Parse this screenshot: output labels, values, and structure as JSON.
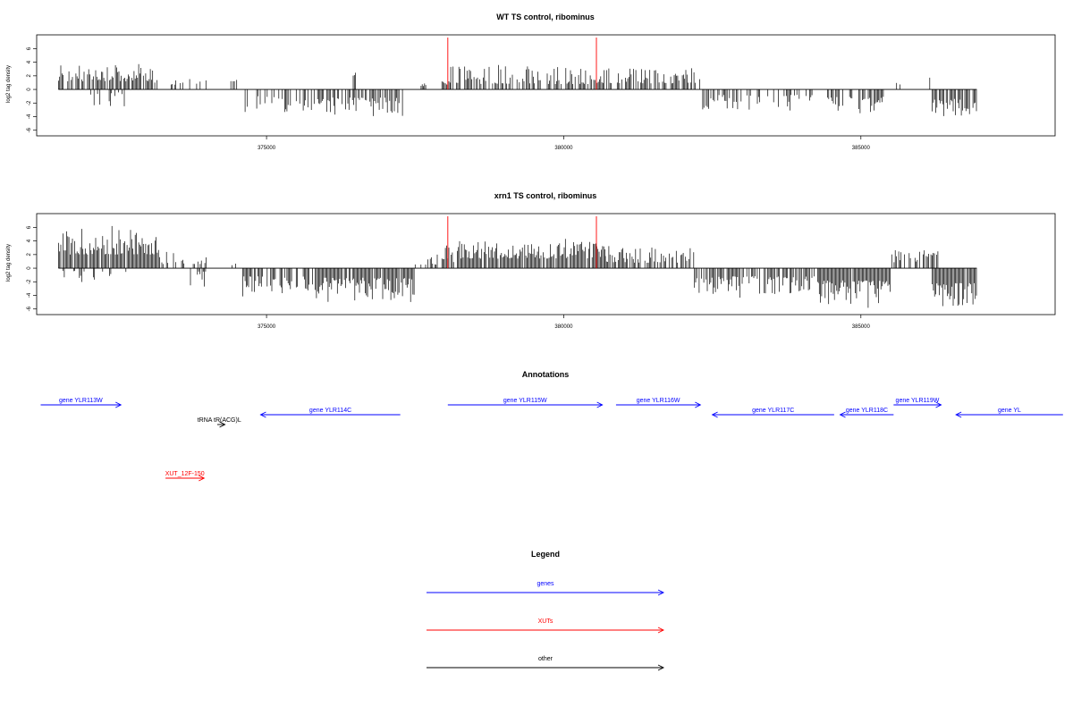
{
  "colors": {
    "gene": "#0000ff",
    "xut": "#ff0000",
    "other": "#000000",
    "marker": "#ff0000"
  },
  "chart_data": [
    {
      "type": "bar",
      "title": "WT TS control, ribominus",
      "ylabel": "log2 tag density",
      "xlim": [
        371200,
        388200
      ],
      "ylim": [
        -6.3,
        7.5
      ],
      "xticks": [
        375000,
        380000,
        385000
      ],
      "yticks": [
        -6,
        -4,
        -2,
        0,
        2,
        4,
        6
      ],
      "markers": [
        378050,
        380550
      ],
      "regions": [
        {
          "start": 371500,
          "end": 373100,
          "sign": 1,
          "base": 1.2,
          "amp": 2.6,
          "density": 0.8
        },
        {
          "start": 372000,
          "end": 372700,
          "sign": -1,
          "base": 0.3,
          "amp": 2.2,
          "density": 0.15
        },
        {
          "start": 373100,
          "end": 374000,
          "sign": 1,
          "base": 0.7,
          "amp": 1.4,
          "density": 0.35
        },
        {
          "start": 374400,
          "end": 374500,
          "sign": 1,
          "base": 1.2,
          "amp": 0.6,
          "density": 0.7
        },
        {
          "start": 374600,
          "end": 375800,
          "sign": -1,
          "base": 1.0,
          "amp": 2.4,
          "density": 0.45
        },
        {
          "start": 375800,
          "end": 377300,
          "sign": -1,
          "base": 1.2,
          "amp": 2.8,
          "density": 0.75
        },
        {
          "start": 376400,
          "end": 376500,
          "sign": 1,
          "base": 2.0,
          "amp": 0.7,
          "density": 0.6
        },
        {
          "start": 377600,
          "end": 377700,
          "sign": 1,
          "base": 0.5,
          "amp": 0.4,
          "density": 0.5
        },
        {
          "start": 377950,
          "end": 378100,
          "sign": 1,
          "base": 0.6,
          "amp": 0.8,
          "density": 0.9
        },
        {
          "start": 378100,
          "end": 380800,
          "sign": 1,
          "base": 0.8,
          "amp": 2.6,
          "density": 0.6
        },
        {
          "start": 380900,
          "end": 382300,
          "sign": 1,
          "base": 0.9,
          "amp": 2.2,
          "density": 0.55
        },
        {
          "start": 382300,
          "end": 384200,
          "sign": -1,
          "base": 0.8,
          "amp": 2.3,
          "density": 0.45
        },
        {
          "start": 384400,
          "end": 385400,
          "sign": -1,
          "base": 1.1,
          "amp": 2.8,
          "density": 0.65
        },
        {
          "start": 385600,
          "end": 385700,
          "sign": 1,
          "base": 0.6,
          "amp": 0.4,
          "density": 0.5
        },
        {
          "start": 386100,
          "end": 386200,
          "sign": 1,
          "base": 1.3,
          "amp": 0.6,
          "density": 0.5
        },
        {
          "start": 386200,
          "end": 386950,
          "sign": -1,
          "base": 1.4,
          "amp": 2.8,
          "density": 0.8
        }
      ]
    },
    {
      "type": "bar",
      "title": "xrn1 TS control, ribominus",
      "ylabel": "log2 tag density",
      "xlim": [
        371200,
        388200
      ],
      "ylim": [
        -6.3,
        7.5
      ],
      "xticks": [
        375000,
        380000,
        385000
      ],
      "yticks": [
        -6,
        -4,
        -2,
        0,
        2,
        4,
        6
      ],
      "markers": [
        378050,
        380550
      ],
      "regions": [
        {
          "start": 371500,
          "end": 373200,
          "sign": 1,
          "base": 2.0,
          "amp": 3.8,
          "density": 0.95
        },
        {
          "start": 371500,
          "end": 372700,
          "sign": -1,
          "base": 0.4,
          "amp": 2.0,
          "density": 0.2
        },
        {
          "start": 373200,
          "end": 374000,
          "sign": 1,
          "base": 0.6,
          "amp": 1.8,
          "density": 0.4
        },
        {
          "start": 373700,
          "end": 374000,
          "sign": -1,
          "base": 0.5,
          "amp": 2.2,
          "density": 0.35
        },
        {
          "start": 374400,
          "end": 374500,
          "sign": 1,
          "base": 0.4,
          "amp": 0.3,
          "density": 0.4
        },
        {
          "start": 374600,
          "end": 375800,
          "sign": -1,
          "base": 1.2,
          "amp": 2.5,
          "density": 0.7
        },
        {
          "start": 375800,
          "end": 377500,
          "sign": -1,
          "base": 1.4,
          "amp": 3.6,
          "density": 0.9
        },
        {
          "start": 377500,
          "end": 377900,
          "sign": 1,
          "base": 0.5,
          "amp": 1.5,
          "density": 0.5
        },
        {
          "start": 377950,
          "end": 378150,
          "sign": 1,
          "base": 0.9,
          "amp": 2.5,
          "density": 0.9
        },
        {
          "start": 378150,
          "end": 380700,
          "sign": 1,
          "base": 1.4,
          "amp": 2.6,
          "density": 0.85
        },
        {
          "start": 380700,
          "end": 382200,
          "sign": 1,
          "base": 0.8,
          "amp": 2.2,
          "density": 0.7
        },
        {
          "start": 382200,
          "end": 384300,
          "sign": -1,
          "base": 1.2,
          "amp": 2.6,
          "density": 0.75
        },
        {
          "start": 384300,
          "end": 385500,
          "sign": -1,
          "base": 1.8,
          "amp": 3.6,
          "density": 0.95
        },
        {
          "start": 385500,
          "end": 386100,
          "sign": 1,
          "base": 0.8,
          "amp": 2.0,
          "density": 0.5
        },
        {
          "start": 386100,
          "end": 386300,
          "sign": 1,
          "base": 1.6,
          "amp": 1.7,
          "density": 0.6
        },
        {
          "start": 386200,
          "end": 386950,
          "sign": -1,
          "base": 2.2,
          "amp": 3.4,
          "density": 0.95
        }
      ]
    }
  ],
  "annotations": {
    "title": "Annotations",
    "items": [
      {
        "label": "gene YLR113W",
        "type": "gene",
        "start": 371200,
        "end": 372550,
        "strand": "+",
        "row": 0
      },
      {
        "label": "tRNA tR(ACG)L",
        "type": "other",
        "start": 374170,
        "end": 374300,
        "strand": "+",
        "row": 2
      },
      {
        "label": "gene YLR114C",
        "type": "gene",
        "start": 374900,
        "end": 377250,
        "strand": "-",
        "row": 1
      },
      {
        "label": "gene YLR115W",
        "type": "gene",
        "start": 378050,
        "end": 380650,
        "strand": "+",
        "row": 0
      },
      {
        "label": "gene YLR116W",
        "type": "gene",
        "start": 380880,
        "end": 382300,
        "strand": "+",
        "row": 0
      },
      {
        "label": "gene YLR117C",
        "type": "gene",
        "start": 382500,
        "end": 384550,
        "strand": "-",
        "row": 1
      },
      {
        "label": "gene YLR118C",
        "type": "gene",
        "start": 384650,
        "end": 385550,
        "strand": "-",
        "row": 1
      },
      {
        "label": "gene YLR119W",
        "type": "gene",
        "start": 385550,
        "end": 386350,
        "strand": "+",
        "row": 0
      },
      {
        "label": "gene YL",
        "type": "gene",
        "start": 386600,
        "end": 388400,
        "strand": "-",
        "row": 1
      },
      {
        "label": "XUT_12F-150",
        "type": "xut",
        "start": 373300,
        "end": 373950,
        "strand": "+",
        "row": 3
      }
    ]
  },
  "legend": {
    "title": "Legend",
    "items": [
      {
        "label": "genes",
        "type": "gene"
      },
      {
        "label": "XUTs",
        "type": "xut"
      },
      {
        "label": "other",
        "type": "other"
      }
    ]
  }
}
